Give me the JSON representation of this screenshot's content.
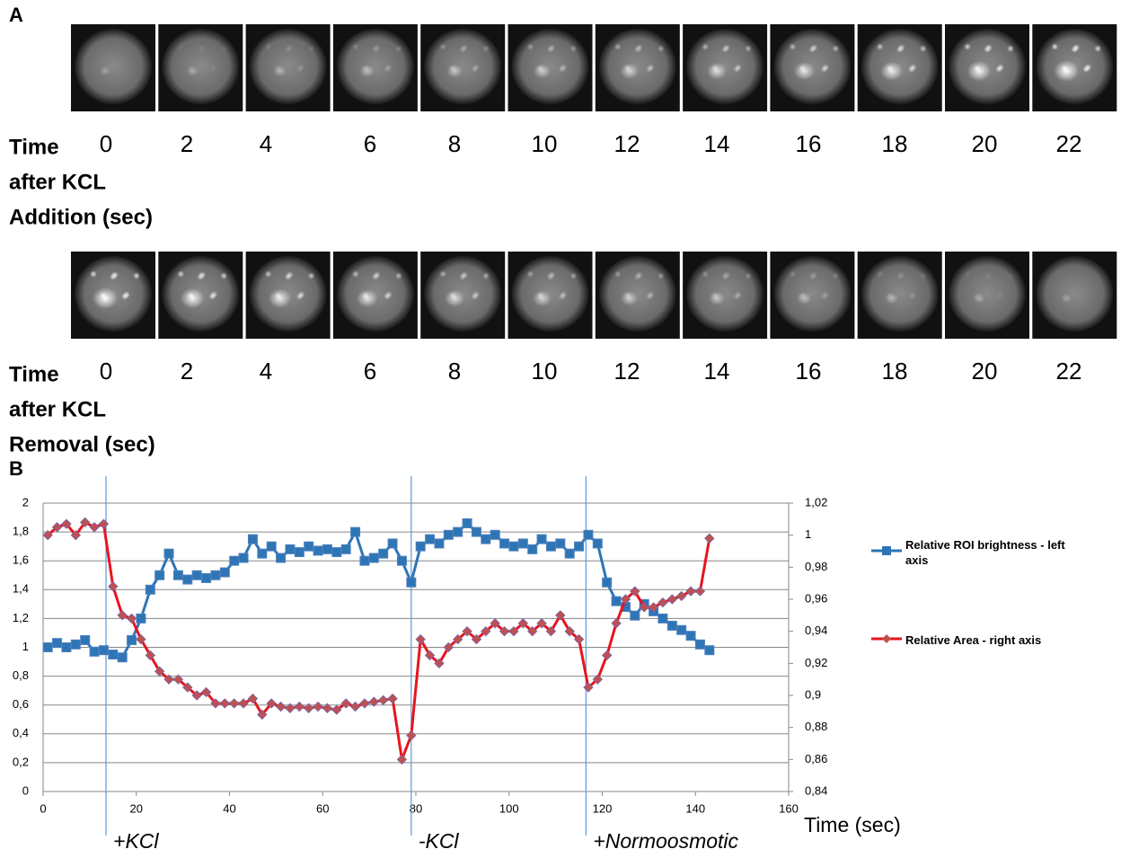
{
  "panel_a": {
    "label": "A",
    "rows": [
      {
        "caption": [
          "Time",
          "after KCL",
          "Addition (sec)"
        ],
        "times": [
          "0",
          "2",
          "4",
          "6",
          "8",
          "10",
          "12",
          "14",
          "16",
          "18",
          "20",
          "22"
        ]
      },
      {
        "caption": [
          "Time",
          "after KCL",
          "Removal (sec)"
        ],
        "times": [
          "0",
          "2",
          "4",
          "6",
          "8",
          "10",
          "12",
          "14",
          "16",
          "18",
          "20",
          "22"
        ]
      }
    ]
  },
  "chart_data": {
    "type": "line",
    "panel_label": "B",
    "x_label": "Time (sec)",
    "x": [
      1,
      3,
      5,
      7,
      9,
      11,
      13,
      15,
      17,
      19,
      21,
      23,
      25,
      27,
      29,
      31,
      33,
      35,
      37,
      39,
      41,
      43,
      45,
      47,
      49,
      51,
      53,
      55,
      57,
      59,
      61,
      63,
      65,
      67,
      69,
      71,
      73,
      75,
      77,
      79,
      81,
      83,
      85,
      87,
      89,
      91,
      93,
      95,
      97,
      99,
      101,
      103,
      105,
      107,
      109,
      111,
      113,
      115,
      117,
      119,
      121,
      123,
      125,
      127,
      129,
      131,
      133,
      135,
      137,
      139,
      141,
      143
    ],
    "series": [
      {
        "name": "Relative ROI brightness - left axis",
        "color": "#2e75b6",
        "marker": "square",
        "axis": "y",
        "values": [
          1.0,
          1.03,
          1.0,
          1.02,
          1.05,
          0.97,
          0.98,
          0.95,
          0.93,
          1.05,
          1.2,
          1.4,
          1.5,
          1.65,
          1.5,
          1.47,
          1.5,
          1.48,
          1.5,
          1.52,
          1.6,
          1.62,
          1.75,
          1.65,
          1.7,
          1.62,
          1.68,
          1.66,
          1.7,
          1.67,
          1.68,
          1.66,
          1.68,
          1.8,
          1.6,
          1.62,
          1.65,
          1.72,
          1.6,
          1.45,
          1.7,
          1.75,
          1.72,
          1.78,
          1.8,
          1.86,
          1.8,
          1.75,
          1.78,
          1.72,
          1.7,
          1.72,
          1.68,
          1.75,
          1.7,
          1.72,
          1.65,
          1.7,
          1.78,
          1.72,
          1.45,
          1.32,
          1.28,
          1.22,
          1.3,
          1.25,
          1.2,
          1.15,
          1.12,
          1.08,
          1.02,
          0.98
        ]
      },
      {
        "name": "Relative Area - right axis",
        "color": "#e8141e",
        "marker": "diamond",
        "axis": "y2",
        "values": [
          1.0,
          1.005,
          1.007,
          1.0,
          1.008,
          1.005,
          1.007,
          0.968,
          0.95,
          0.948,
          0.935,
          0.925,
          0.915,
          0.91,
          0.91,
          0.905,
          0.9,
          0.902,
          0.895,
          0.895,
          0.895,
          0.895,
          0.898,
          0.888,
          0.895,
          0.893,
          0.892,
          0.893,
          0.892,
          0.893,
          0.892,
          0.891,
          0.895,
          0.893,
          0.895,
          0.896,
          0.897,
          0.898,
          0.86,
          0.875,
          0.935,
          0.925,
          0.92,
          0.93,
          0.935,
          0.94,
          0.935,
          0.94,
          0.945,
          0.94,
          0.94,
          0.945,
          0.94,
          0.945,
          0.94,
          0.95,
          0.94,
          0.935,
          0.905,
          0.91,
          0.925,
          0.945,
          0.96,
          0.965,
          0.955,
          0.955,
          0.958,
          0.96,
          0.962,
          0.965,
          0.965,
          0.998
        ]
      }
    ],
    "xlim": [
      0,
      160
    ],
    "xticks": [
      0,
      20,
      40,
      60,
      80,
      100,
      120,
      140,
      160
    ],
    "ylim": [
      0,
      2
    ],
    "yticks": [
      0,
      {
        "value": 0.2,
        "label": "0,2"
      },
      {
        "value": 0.4,
        "label": "0,4"
      },
      {
        "value": 0.6,
        "label": "0,6"
      },
      {
        "value": 0.8,
        "label": "0,8"
      },
      1,
      {
        "value": 1.2,
        "label": "1,2"
      },
      {
        "value": 1.4,
        "label": "1,4"
      },
      {
        "value": 1.6,
        "label": "1,6"
      },
      {
        "value": 1.8,
        "label": "1,8"
      },
      2
    ],
    "y2lim": [
      0.84,
      1.02
    ],
    "y2ticks": [
      {
        "value": 0.84,
        "label": "0,84"
      },
      {
        "value": 0.86,
        "label": "0,86"
      },
      {
        "value": 0.88,
        "label": "0,88"
      },
      {
        "value": 0.9,
        "label": "0,9"
      },
      {
        "value": 0.92,
        "label": "0,92"
      },
      {
        "value": 0.94,
        "label": "0,94"
      },
      {
        "value": 0.96,
        "label": "0,96"
      },
      {
        "value": 0.98,
        "label": "0,98"
      },
      1,
      {
        "value": 1.02,
        "label": "1,02"
      }
    ],
    "grid": true,
    "legend": "right",
    "events": [
      {
        "x": 13.5,
        "label": "+KCl"
      },
      {
        "x": 79,
        "label": "-KCl"
      },
      {
        "x": 116.5,
        "label": "+Normoosmotic"
      }
    ]
  }
}
